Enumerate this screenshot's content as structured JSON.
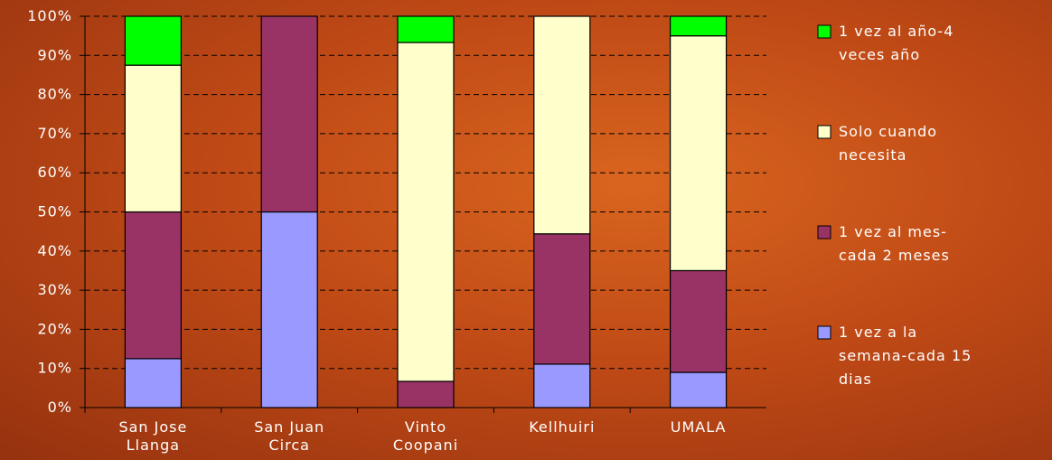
{
  "chart_data": {
    "type": "stacked_bar",
    "categories": [
      "San Jose\nLlanga",
      "San Juan\nCirca",
      "Vinto\nCoopani",
      "Kellhuiri",
      "UMALA"
    ],
    "series": [
      {
        "name": "1 vez a la\nsemana-cada 15\ndias",
        "color": "#9999ff",
        "values": [
          12.5,
          50,
          0,
          11.1,
          9
        ]
      },
      {
        "name": "1 vez al mes-\ncada 2 meses",
        "color": "#993366",
        "values": [
          37.5,
          50,
          6.7,
          33.3,
          26
        ]
      },
      {
        "name": "Solo cuando\nnecesita",
        "color": "#ffffcc",
        "values": [
          37.5,
          0,
          86.6,
          55.6,
          60
        ]
      },
      {
        "name": "1 vez al año-4\nveces año",
        "color": "#00ff00",
        "values": [
          12.5,
          0,
          6.7,
          0,
          5
        ]
      }
    ],
    "ylim": [
      0,
      100
    ],
    "yticks": [
      {
        "value": 0,
        "label": "0%"
      },
      {
        "value": 10,
        "label": "10%"
      },
      {
        "value": 20,
        "label": "20%"
      },
      {
        "value": 30,
        "label": "30%"
      },
      {
        "value": 40,
        "label": "40%"
      },
      {
        "value": 50,
        "label": "50%"
      },
      {
        "value": 60,
        "label": "60%"
      },
      {
        "value": 70,
        "label": "70%"
      },
      {
        "value": 80,
        "label": "80%"
      },
      {
        "value": 90,
        "label": "90%"
      },
      {
        "value": 100,
        "label": "100%"
      }
    ],
    "grid": true
  }
}
